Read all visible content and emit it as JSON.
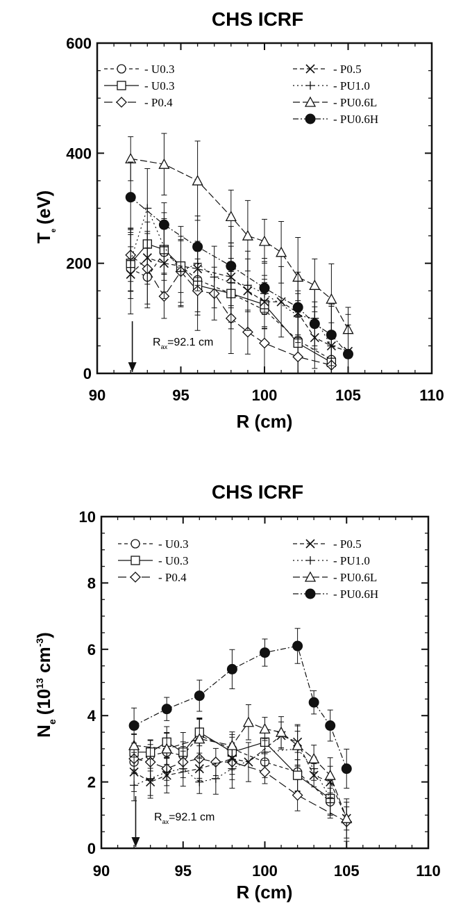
{
  "chart_data": [
    {
      "type": "scatter",
      "title": "CHS ICRF",
      "xlabel": "R (cm)",
      "ylabel_main": "T",
      "ylabel_sub": "e",
      "ylabel_unit": "(eV)",
      "xlim": [
        90,
        110
      ],
      "ylim": [
        0,
        600
      ],
      "xticks": [
        "90",
        "95",
        "100",
        "105",
        "110"
      ],
      "yticks": [
        "0",
        "200",
        "400",
        "600"
      ],
      "annotation": {
        "text_main": "R",
        "text_sub": "ax",
        "text_rest": "=92.1 cm",
        "x": 92.1
      },
      "legend": [
        "- U0.3",
        "- U0.3",
        "- P0.4",
        "- P0.5",
        "- PU1.0",
        "- PU0.6L",
        "- PU0.6H"
      ],
      "series": [
        {
          "name": "U0.3",
          "marker": "circle-open",
          "dash": "5,4",
          "x": [
            92,
            93,
            94,
            95,
            96,
            98,
            100,
            102,
            104
          ],
          "y": [
            190,
            175,
            220,
            195,
            170,
            145,
            115,
            60,
            25
          ]
        },
        {
          "name": "U0.3",
          "marker": "square-open",
          "dash": "",
          "x": [
            92,
            93,
            94,
            95,
            96,
            98,
            100,
            102,
            104
          ],
          "y": [
            200,
            235,
            225,
            195,
            160,
            145,
            125,
            55,
            20
          ]
        },
        {
          "name": "P0.4",
          "marker": "diamond-open",
          "dash": "12,5",
          "x": [
            92,
            93,
            94,
            95,
            96,
            97,
            98,
            99,
            100,
            102,
            104
          ],
          "y": [
            215,
            190,
            140,
            185,
            150,
            145,
            100,
            75,
            55,
            30,
            15
          ]
        },
        {
          "name": "P0.5",
          "marker": "x",
          "dash": "6,4",
          "x": [
            92,
            93,
            94,
            96,
            98,
            99,
            100,
            101,
            102,
            103,
            104,
            105
          ],
          "y": [
            180,
            210,
            200,
            190,
            175,
            150,
            130,
            130,
            110,
            65,
            50,
            40
          ]
        },
        {
          "name": "PU1.0",
          "marker": "plus",
          "dash": "2,4",
          "x": [
            92,
            93,
            94,
            95,
            96,
            97,
            98,
            99,
            100,
            102,
            103,
            104
          ],
          "y": [
            205,
            300,
            230,
            185,
            200,
            175,
            165,
            160,
            145,
            105,
            100,
            50
          ]
        },
        {
          "name": "PU0.6L",
          "marker": "triangle-open",
          "dash": "10,4",
          "x": [
            92,
            94,
            96,
            98,
            99,
            100,
            101,
            102,
            103,
            104,
            105
          ],
          "y": [
            390,
            380,
            350,
            285,
            250,
            240,
            220,
            175,
            160,
            135,
            80
          ]
        },
        {
          "name": "PU0.6H",
          "marker": "circle-filled",
          "dash": "8,3,2,3",
          "x": [
            92,
            94,
            96,
            98,
            100,
            102,
            103,
            104,
            105
          ],
          "y": [
            320,
            270,
            230,
            195,
            155,
            120,
            90,
            70,
            35
          ]
        }
      ]
    },
    {
      "type": "scatter",
      "title": "CHS ICRF",
      "xlabel": "R (cm)",
      "ylabel_main": "N",
      "ylabel_sub": "e",
      "ylabel_paren_open": "(10",
      "ylabel_exp1": "13",
      "ylabel_mid": " cm",
      "ylabel_exp2": "-3",
      "ylabel_paren_close": ")",
      "xlim": [
        90,
        110
      ],
      "ylim": [
        0,
        10
      ],
      "xticks": [
        "90",
        "95",
        "100",
        "105",
        "110"
      ],
      "yticks": [
        "0",
        "2",
        "4",
        "6",
        "8",
        "10"
      ],
      "annotation": {
        "text_main": "R",
        "text_sub": "ax",
        "text_rest": "=92.1 cm",
        "x": 92.1
      },
      "legend": [
        "- U0.3",
        "- U0.3",
        "- P0.4",
        "- P0.5",
        "- PU1.0",
        "- PU0.6L",
        "- PU0.6H"
      ],
      "series": [
        {
          "name": "U0.3",
          "marker": "circle-open",
          "dash": "5,4",
          "x": [
            92,
            93,
            94,
            95,
            96,
            98,
            100,
            102,
            104
          ],
          "y": [
            2.6,
            2.8,
            2.9,
            2.8,
            3.4,
            3.0,
            2.6,
            2.3,
            1.4
          ]
        },
        {
          "name": "U0.3",
          "marker": "square-open",
          "dash": "",
          "x": [
            92,
            93,
            94,
            95,
            96,
            98,
            100,
            102,
            104
          ],
          "y": [
            2.9,
            2.9,
            3.2,
            2.9,
            3.5,
            2.9,
            3.2,
            2.2,
            1.5
          ]
        },
        {
          "name": "P0.4",
          "marker": "diamond-open",
          "dash": "12,5",
          "x": [
            92,
            93,
            94,
            95,
            96,
            97,
            98,
            100,
            102,
            105
          ],
          "y": [
            2.7,
            2.6,
            2.4,
            2.6,
            2.7,
            2.6,
            2.6,
            2.3,
            1.6,
            0.8
          ]
        },
        {
          "name": "P0.5",
          "marker": "x",
          "dash": "6,4",
          "x": [
            92,
            93,
            94,
            96,
            98,
            99,
            101,
            102,
            103,
            104,
            105
          ],
          "y": [
            2.3,
            2.0,
            2.2,
            2.4,
            2.7,
            2.6,
            3.4,
            3.2,
            2.2,
            2.0,
            0.9
          ]
        },
        {
          "name": "PU1.0",
          "marker": "plus",
          "dash": "2,4",
          "x": [
            92,
            93,
            94,
            95,
            96,
            97,
            98,
            100,
            102,
            103,
            104
          ],
          "y": [
            1.9,
            2.1,
            2.3,
            2.4,
            2.0,
            2.1,
            2.4,
            2.9,
            3.0,
            2.4,
            1.5
          ]
        },
        {
          "name": "PU0.6L",
          "marker": "triangle-open",
          "dash": "10,4",
          "x": [
            92,
            94,
            96,
            98,
            99,
            100,
            101,
            102,
            103,
            104,
            105
          ],
          "y": [
            3.1,
            3.0,
            3.3,
            3.1,
            3.8,
            3.6,
            3.5,
            3.1,
            2.7,
            2.2,
            0.9
          ]
        },
        {
          "name": "PU0.6H",
          "marker": "circle-filled",
          "dash": "8,3,2,3",
          "x": [
            92,
            94,
            96,
            98,
            100,
            102,
            103,
            104,
            105
          ],
          "y": [
            3.7,
            4.2,
            4.6,
            5.4,
            5.9,
            6.1,
            4.4,
            3.7,
            2.4
          ]
        }
      ]
    }
  ]
}
